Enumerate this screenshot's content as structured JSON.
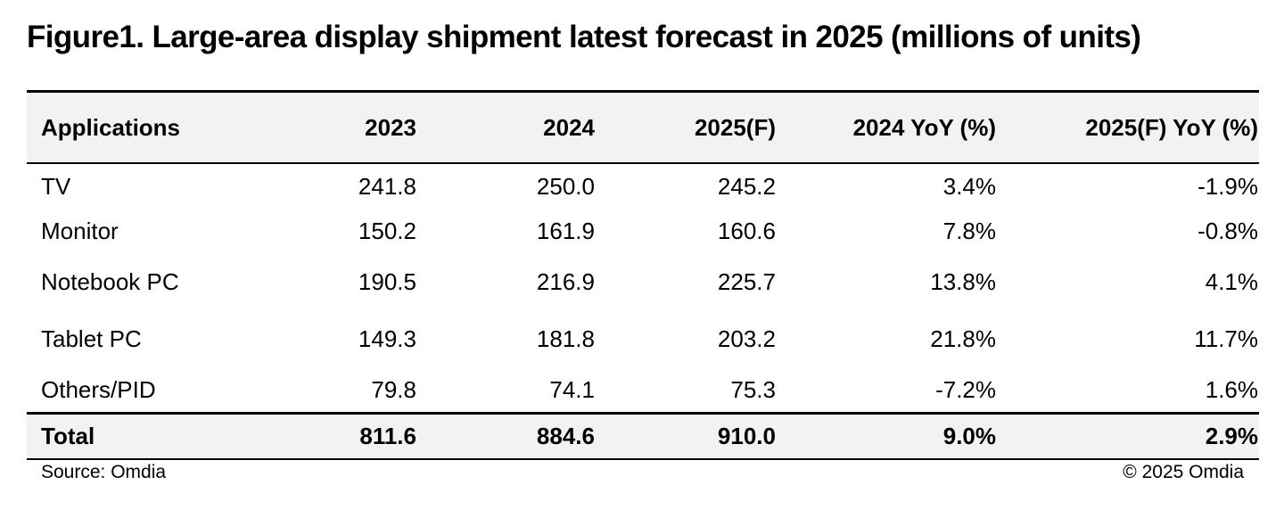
{
  "title": "Figure1. Large-area display shipment latest forecast in 2025 (millions of units)",
  "table": {
    "headers": [
      "Applications",
      "2023",
      "2024",
      "2025(F)",
      "2024 YoY (%)",
      "2025(F) YoY (%)"
    ],
    "rows": [
      [
        "TV",
        "241.8",
        "250.0",
        "245.2",
        "3.4%",
        "-1.9%"
      ],
      [
        "Monitor",
        "150.2",
        "161.9",
        "160.6",
        "7.8%",
        "-0.8%"
      ],
      [
        "Notebook PC",
        "190.5",
        "216.9",
        "225.7",
        "13.8%",
        "4.1%"
      ],
      [
        "Tablet PC",
        "149.3",
        "181.8",
        "203.2",
        "21.8%",
        "11.7%"
      ],
      [
        "Others/PID",
        "79.8",
        "74.1",
        "75.3",
        "-7.2%",
        "1.6%"
      ]
    ],
    "total": [
      "Total",
      "811.6",
      "884.6",
      "910.0",
      "9.0%",
      "2.9%"
    ]
  },
  "footer": {
    "source": "Source: Omdia",
    "copyright": "© 2025 Omdia"
  },
  "colors": {
    "header_bg": "#f2f2f2",
    "rule": "#000000"
  }
}
